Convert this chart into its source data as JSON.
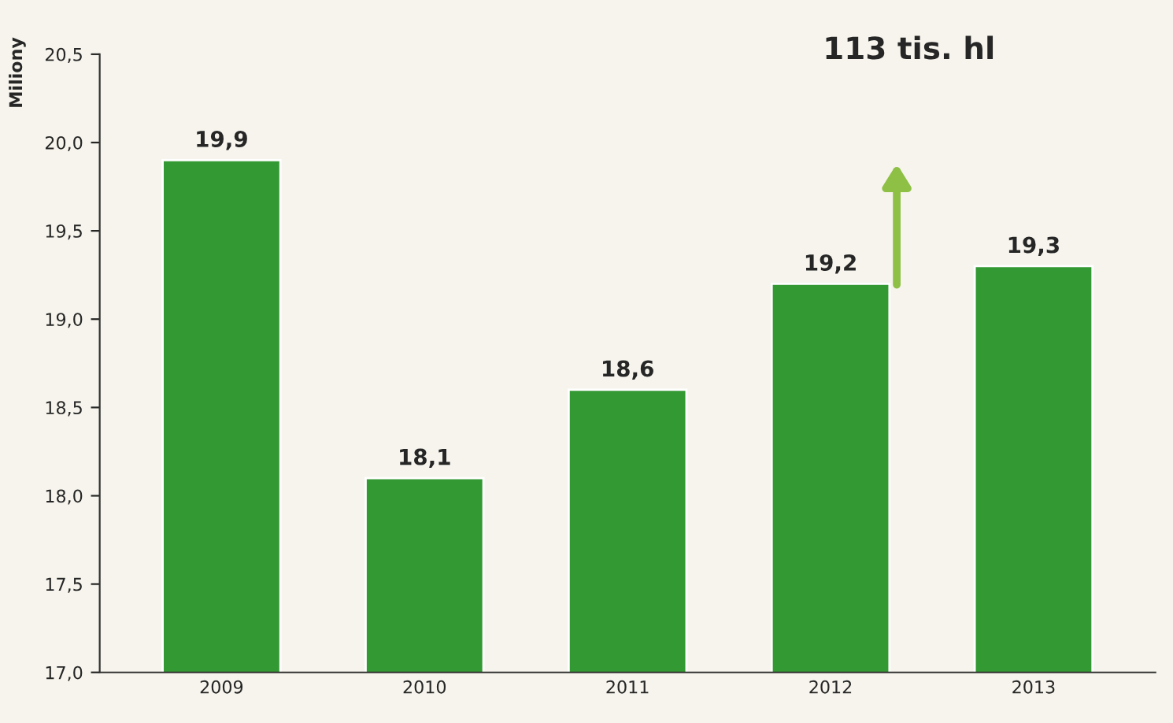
{
  "chart_data": {
    "type": "bar",
    "ylabel": "Miliony",
    "categories": [
      "2009",
      "2010",
      "2011",
      "2012",
      "2013"
    ],
    "values": [
      19.9,
      18.1,
      18.6,
      19.2,
      19.3
    ],
    "value_labels": [
      "19,9",
      "18,1",
      "18,6",
      "19,2",
      "19,3"
    ],
    "color": "#339933",
    "ylim": [
      17.0,
      20.5
    ],
    "yticks": [
      {
        "value": 17.0,
        "label": "17,0"
      },
      {
        "value": 17.5,
        "label": "17,5"
      },
      {
        "value": 18.0,
        "label": "18,0"
      },
      {
        "value": 18.5,
        "label": "18,5"
      },
      {
        "value": 19.0,
        "label": "19,0"
      },
      {
        "value": 19.5,
        "label": "19,5"
      },
      {
        "value": 20.0,
        "label": "20,0"
      },
      {
        "value": 20.5,
        "label": "20,5"
      }
    ],
    "annotations": [
      "113 tis. hl"
    ],
    "grid": false,
    "legend": false
  }
}
